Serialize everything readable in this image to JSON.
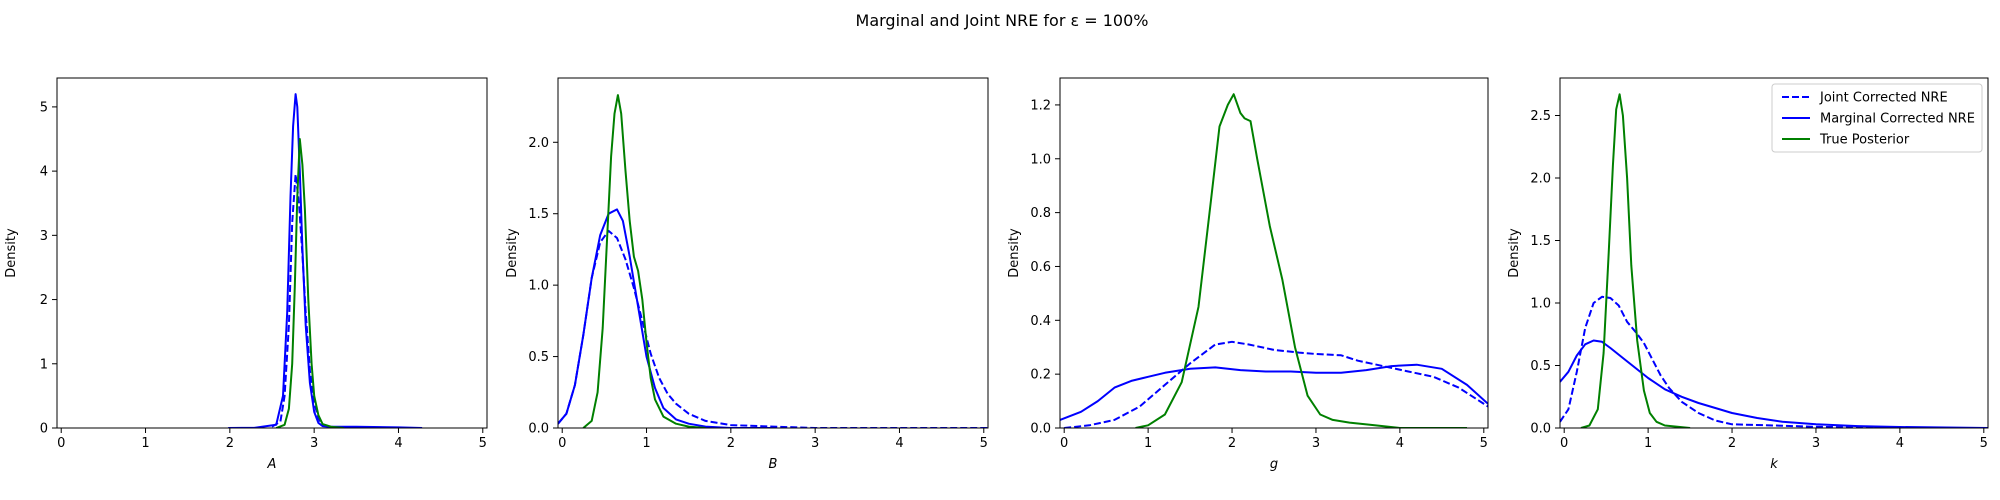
{
  "figure": {
    "title": "Marginal and Joint NRE for ε = 100%",
    "legend": {
      "placement": "top-right",
      "entries": [
        {
          "label": "Joint Corrected NRE",
          "color": "#0000ff",
          "dash": "dashed"
        },
        {
          "label": "Marginal Corrected NRE",
          "color": "#0000ff",
          "dash": "solid"
        },
        {
          "label": "True Posterior",
          "color": "#008000",
          "dash": "solid"
        }
      ]
    }
  },
  "chart_data": [
    {
      "type": "line",
      "xlabel": "A",
      "ylabel": "Density",
      "xlim": [
        -0.05,
        5.05
      ],
      "ylim": [
        0,
        5.45
      ],
      "xticks": [
        0,
        1,
        2,
        3,
        4,
        5
      ],
      "yticks": [
        0,
        1,
        2,
        3,
        4,
        5
      ],
      "ytick_labels": [
        "0",
        "1",
        "2",
        "3",
        "4",
        "5"
      ],
      "grid": false,
      "series": [
        {
          "name": "Joint Corrected NRE",
          "color": "#0000ff",
          "dash": "dashed",
          "x": [
            2.5,
            2.6,
            2.65,
            2.7,
            2.74,
            2.78,
            2.82,
            2.86,
            2.9,
            2.95,
            3.0,
            3.05,
            3.1,
            3.2
          ],
          "y": [
            0.02,
            0.1,
            0.5,
            1.6,
            3.2,
            3.95,
            3.5,
            2.7,
            1.8,
            0.9,
            0.4,
            0.15,
            0.05,
            0.01
          ]
        },
        {
          "name": "Marginal Corrected NRE",
          "color": "#0000ff",
          "dash": "solid",
          "x": [
            1.98,
            2.3,
            2.55,
            2.63,
            2.68,
            2.72,
            2.75,
            2.78,
            2.8,
            2.83,
            2.86,
            2.9,
            2.95,
            3.0,
            3.05,
            3.1,
            3.2,
            3.5,
            4.0,
            4.28
          ],
          "y": [
            0.0,
            0.005,
            0.05,
            0.5,
            1.8,
            3.6,
            4.7,
            5.2,
            5.0,
            4.0,
            2.8,
            1.6,
            0.7,
            0.25,
            0.08,
            0.03,
            0.02,
            0.02,
            0.01,
            0.0
          ]
        },
        {
          "name": "True Posterior",
          "color": "#008000",
          "dash": "solid",
          "x": [
            2.55,
            2.65,
            2.7,
            2.74,
            2.77,
            2.8,
            2.83,
            2.86,
            2.89,
            2.93,
            2.97,
            3.0,
            3.05,
            3.1,
            3.2,
            3.35
          ],
          "y": [
            0.0,
            0.05,
            0.3,
            1.0,
            2.2,
            3.6,
            4.5,
            4.1,
            3.4,
            2.0,
            1.0,
            0.5,
            0.2,
            0.06,
            0.02,
            0.0
          ]
        }
      ]
    },
    {
      "type": "line",
      "xlabel": "B",
      "ylabel": "Density",
      "xlim": [
        -0.05,
        5.05
      ],
      "ylim": [
        0,
        2.45
      ],
      "xticks": [
        0,
        1,
        2,
        3,
        4,
        5
      ],
      "yticks": [
        0,
        0.5,
        1.0,
        1.5,
        2.0
      ],
      "ytick_labels": [
        "0.0",
        "0.5",
        "1.0",
        "1.5",
        "2.0"
      ],
      "grid": false,
      "series": [
        {
          "name": "Joint Corrected NRE",
          "color": "#0000ff",
          "dash": "dashed",
          "x": [
            -0.05,
            0.05,
            0.15,
            0.25,
            0.35,
            0.45,
            0.55,
            0.65,
            0.75,
            0.85,
            0.95,
            1.05,
            1.15,
            1.25,
            1.35,
            1.5,
            1.7,
            2.0,
            2.5,
            3.0,
            4.0,
            5.05
          ],
          "y": [
            0.03,
            0.1,
            0.3,
            0.65,
            1.05,
            1.3,
            1.38,
            1.33,
            1.18,
            0.98,
            0.75,
            0.52,
            0.35,
            0.24,
            0.17,
            0.1,
            0.05,
            0.02,
            0.01,
            0.0,
            0.0,
            0.0
          ]
        },
        {
          "name": "Marginal Corrected NRE",
          "color": "#0000ff",
          "dash": "solid",
          "x": [
            -0.05,
            0.05,
            0.15,
            0.25,
            0.35,
            0.45,
            0.55,
            0.65,
            0.72,
            0.8,
            0.9,
            1.0,
            1.1,
            1.2,
            1.35,
            1.5,
            1.7,
            2.0,
            2.5
          ],
          "y": [
            0.03,
            0.1,
            0.3,
            0.65,
            1.05,
            1.35,
            1.5,
            1.53,
            1.45,
            1.2,
            0.85,
            0.5,
            0.28,
            0.14,
            0.06,
            0.03,
            0.01,
            0.0,
            0.0
          ]
        },
        {
          "name": "True Posterior",
          "color": "#008000",
          "dash": "solid",
          "x": [
            0.25,
            0.35,
            0.42,
            0.48,
            0.53,
            0.58,
            0.62,
            0.66,
            0.7,
            0.75,
            0.8,
            0.85,
            0.9,
            0.95,
            1.0,
            1.05,
            1.1,
            1.2,
            1.35,
            1.5,
            1.7
          ],
          "y": [
            0.0,
            0.05,
            0.25,
            0.7,
            1.3,
            1.9,
            2.2,
            2.33,
            2.2,
            1.8,
            1.45,
            1.2,
            1.1,
            0.9,
            0.6,
            0.35,
            0.2,
            0.08,
            0.03,
            0.01,
            0.0
          ]
        }
      ]
    },
    {
      "type": "line",
      "xlabel": "g",
      "ylabel": "Density",
      "xlim": [
        -0.05,
        5.05
      ],
      "ylim": [
        0,
        1.3
      ],
      "xticks": [
        0,
        1,
        2,
        3,
        4,
        5
      ],
      "yticks": [
        0,
        0.2,
        0.4,
        0.6,
        0.8,
        1.0,
        1.2
      ],
      "ytick_labels": [
        "0.0",
        "0.2",
        "0.4",
        "0.6",
        "0.8",
        "1.0",
        "1.2"
      ],
      "grid": false,
      "series": [
        {
          "name": "Joint Corrected NRE",
          "color": "#0000ff",
          "dash": "dashed",
          "x": [
            0.0,
            0.3,
            0.6,
            0.9,
            1.2,
            1.5,
            1.8,
            2.0,
            2.2,
            2.5,
            2.8,
            3.0,
            3.3,
            3.5,
            3.8,
            4.1,
            4.4,
            4.7,
            5.05
          ],
          "y": [
            0.0,
            0.01,
            0.03,
            0.08,
            0.16,
            0.24,
            0.31,
            0.32,
            0.31,
            0.29,
            0.28,
            0.275,
            0.27,
            0.25,
            0.23,
            0.21,
            0.19,
            0.15,
            0.08
          ]
        },
        {
          "name": "Marginal Corrected NRE",
          "color": "#0000ff",
          "dash": "solid",
          "x": [
            -0.05,
            0.2,
            0.4,
            0.6,
            0.8,
            1.0,
            1.2,
            1.5,
            1.8,
            2.1,
            2.4,
            2.7,
            3.0,
            3.3,
            3.6,
            3.9,
            4.2,
            4.5,
            4.8,
            5.05
          ],
          "y": [
            0.03,
            0.06,
            0.1,
            0.15,
            0.175,
            0.19,
            0.205,
            0.22,
            0.225,
            0.215,
            0.21,
            0.21,
            0.205,
            0.205,
            0.215,
            0.23,
            0.235,
            0.22,
            0.16,
            0.09
          ]
        },
        {
          "name": "True Posterior",
          "color": "#008000",
          "dash": "solid",
          "x": [
            0.85,
            1.0,
            1.2,
            1.4,
            1.6,
            1.75,
            1.85,
            1.95,
            2.02,
            2.1,
            2.15,
            2.22,
            2.3,
            2.45,
            2.6,
            2.75,
            2.9,
            3.05,
            3.2,
            3.4,
            3.7,
            4.0,
            4.4,
            4.8
          ],
          "y": [
            0.0,
            0.01,
            0.05,
            0.17,
            0.45,
            0.85,
            1.12,
            1.2,
            1.24,
            1.17,
            1.15,
            1.14,
            1.0,
            0.75,
            0.55,
            0.3,
            0.12,
            0.05,
            0.03,
            0.02,
            0.01,
            0.0,
            0.0,
            0.0
          ]
        }
      ]
    },
    {
      "type": "line",
      "xlabel": "k",
      "ylabel": "Density",
      "xlim": [
        -0.05,
        5.05
      ],
      "ylim": [
        0,
        2.8
      ],
      "xticks": [
        0,
        1,
        2,
        3,
        4,
        5
      ],
      "yticks": [
        0,
        0.5,
        1.0,
        1.5,
        2.0,
        2.5
      ],
      "ytick_labels": [
        "0.0",
        "0.5",
        "1.0",
        "1.5",
        "2.0",
        "2.5"
      ],
      "grid": false,
      "series": [
        {
          "name": "Joint Corrected NRE",
          "color": "#0000ff",
          "dash": "dashed",
          "x": [
            -0.05,
            0.05,
            0.15,
            0.25,
            0.35,
            0.45,
            0.55,
            0.65,
            0.75,
            0.85,
            0.95,
            1.05,
            1.15,
            1.25,
            1.4,
            1.6,
            1.8,
            2.0,
            2.5,
            3.0,
            4.0,
            5.05
          ],
          "y": [
            0.05,
            0.15,
            0.45,
            0.8,
            1.0,
            1.05,
            1.04,
            0.98,
            0.85,
            0.77,
            0.68,
            0.55,
            0.42,
            0.32,
            0.21,
            0.12,
            0.06,
            0.03,
            0.02,
            0.01,
            0.0,
            0.0
          ]
        },
        {
          "name": "Marginal Corrected NRE",
          "color": "#0000ff",
          "dash": "solid",
          "x": [
            -0.05,
            0.05,
            0.15,
            0.25,
            0.35,
            0.45,
            0.55,
            0.7,
            0.85,
            1.0,
            1.2,
            1.4,
            1.6,
            1.8,
            2.0,
            2.3,
            2.6,
            3.0,
            3.5,
            4.0,
            5.05
          ],
          "y": [
            0.37,
            0.45,
            0.58,
            0.67,
            0.7,
            0.69,
            0.64,
            0.56,
            0.48,
            0.4,
            0.31,
            0.25,
            0.2,
            0.16,
            0.12,
            0.08,
            0.05,
            0.03,
            0.015,
            0.008,
            0.0
          ]
        },
        {
          "name": "True Posterior",
          "color": "#008000",
          "dash": "solid",
          "x": [
            0.2,
            0.3,
            0.4,
            0.47,
            0.53,
            0.58,
            0.62,
            0.66,
            0.7,
            0.75,
            0.8,
            0.87,
            0.95,
            1.02,
            1.1,
            1.2,
            1.35,
            1.5
          ],
          "y": [
            0.0,
            0.02,
            0.15,
            0.6,
            1.4,
            2.1,
            2.55,
            2.67,
            2.5,
            2.0,
            1.3,
            0.7,
            0.3,
            0.12,
            0.05,
            0.02,
            0.01,
            0.0
          ]
        }
      ]
    }
  ]
}
